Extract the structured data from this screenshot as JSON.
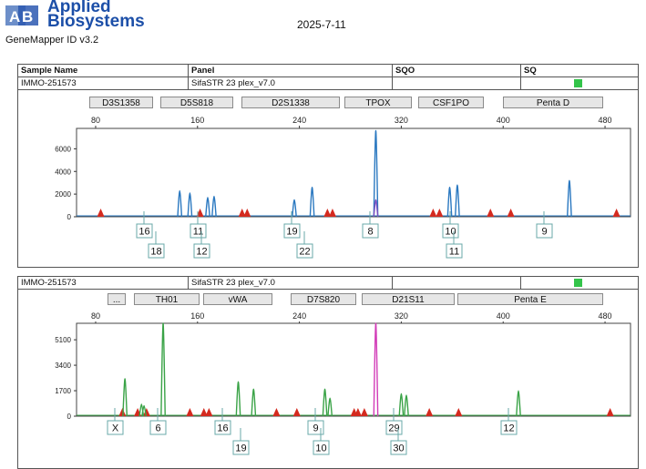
{
  "brand": {
    "line1": "Applied",
    "line2": "Biosystems",
    "product": "GeneMapper ID v3.2"
  },
  "report_date": "2025-7-11",
  "colors": {
    "blue": "#2a78c0",
    "green": "#3aa347",
    "red": "#d42a1f",
    "purple": "#7b4fc0",
    "magenta": "#d23cb8",
    "status": "#33c44a",
    "brand": "#1c4fa8"
  },
  "header": {
    "col_sample": "Sample Name",
    "col_panel": "Panel",
    "col_sqo": "SQO",
    "col_sq": "SQ"
  },
  "panel1": {
    "sample": "IMMO-251573",
    "panel": "SifaSTR 23 plex_v7.0",
    "loci": [
      "D3S1358",
      "D5S818",
      "D2S1338",
      "TPOX",
      "CSF1PO",
      "Penta D"
    ],
    "axis_ticks": [
      "80",
      "160",
      "240",
      "320",
      "400",
      "480"
    ],
    "y_ticks": [
      "6000",
      "4000",
      "2000",
      "0"
    ],
    "calls_upper": [
      "16",
      "11",
      "19",
      "8",
      "10",
      "9"
    ],
    "calls_lower": [
      "18",
      "12",
      "22",
      "11"
    ]
  },
  "panel2": {
    "sample": "IMMO-251573",
    "panel": "SifaSTR 23 plex_v7.0",
    "loci": [
      "...",
      "TH01",
      "vWA",
      "D7S820",
      "D21S11",
      "Penta E"
    ],
    "axis_ticks": [
      "80",
      "160",
      "240",
      "320",
      "400",
      "480"
    ],
    "y_ticks": [
      "5100",
      "3400",
      "1700",
      "0"
    ],
    "calls_upper": [
      "X",
      "6",
      "16",
      "9",
      "29",
      "12"
    ],
    "calls_lower": [
      "19",
      "10",
      "30"
    ]
  },
  "chart_data": [
    {
      "type": "line",
      "title": "",
      "xlabel": "",
      "ylabel": "",
      "xlim": [
        65,
        500
      ],
      "ylim": [
        0,
        7800
      ],
      "grid": false,
      "peaks": [
        {
          "x": 146,
          "y": 2300,
          "color": "blue"
        },
        {
          "x": 154,
          "y": 2100,
          "color": "blue"
        },
        {
          "x": 168,
          "y": 1700,
          "color": "blue"
        },
        {
          "x": 173,
          "y": 1800,
          "color": "blue"
        },
        {
          "x": 236,
          "y": 1500,
          "color": "blue"
        },
        {
          "x": 250,
          "y": 2600,
          "color": "blue"
        },
        {
          "x": 300,
          "y": 7600,
          "color": "blue"
        },
        {
          "x": 300,
          "y": 1500,
          "color": "purple"
        },
        {
          "x": 358,
          "y": 2600,
          "color": "blue"
        },
        {
          "x": 364,
          "y": 2800,
          "color": "blue"
        },
        {
          "x": 452,
          "y": 3200,
          "color": "blue"
        }
      ],
      "markers": [
        84,
        162,
        195,
        199,
        262,
        266,
        345,
        350,
        390,
        406,
        489
      ]
    },
    {
      "type": "line",
      "title": "",
      "xlabel": "",
      "ylabel": "",
      "xlim": [
        65,
        500
      ],
      "ylim": [
        0,
        6200
      ],
      "grid": false,
      "peaks": [
        {
          "x": 103,
          "y": 2500,
          "color": "green"
        },
        {
          "x": 116,
          "y": 800,
          "color": "green"
        },
        {
          "x": 118,
          "y": 700,
          "color": "green"
        },
        {
          "x": 133,
          "y": 6200,
          "color": "green"
        },
        {
          "x": 192,
          "y": 2300,
          "color": "green"
        },
        {
          "x": 204,
          "y": 1800,
          "color": "green"
        },
        {
          "x": 260,
          "y": 1800,
          "color": "green"
        },
        {
          "x": 264,
          "y": 1200,
          "color": "green"
        },
        {
          "x": 300,
          "y": 6200,
          "color": "magenta"
        },
        {
          "x": 320,
          "y": 1500,
          "color": "green"
        },
        {
          "x": 324,
          "y": 1400,
          "color": "green"
        },
        {
          "x": 412,
          "y": 1700,
          "color": "green"
        }
      ],
      "markers": [
        101,
        113,
        120,
        154,
        165,
        169,
        222,
        238,
        283,
        286,
        291,
        342,
        365,
        484
      ]
    }
  ]
}
